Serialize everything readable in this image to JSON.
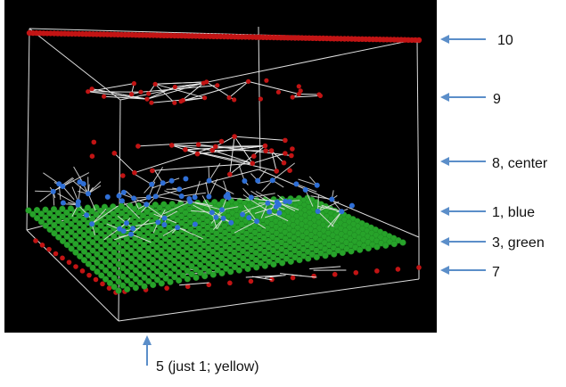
{
  "colors": {
    "background": "#000000",
    "frame": "#dddddd",
    "red_node": "#c21414",
    "blue_node": "#2f6fd6",
    "green_node": "#27a32a",
    "link": "#e6e6e6",
    "arrow": "#5b8ec9"
  },
  "labels": {
    "layer_10": "10",
    "layer_9": "9",
    "layer_8": "8, center",
    "layer_1": "1, blue",
    "layer_3": "3, green",
    "layer_7": "7",
    "layer_5": "5 (just 1; yellow)"
  }
}
